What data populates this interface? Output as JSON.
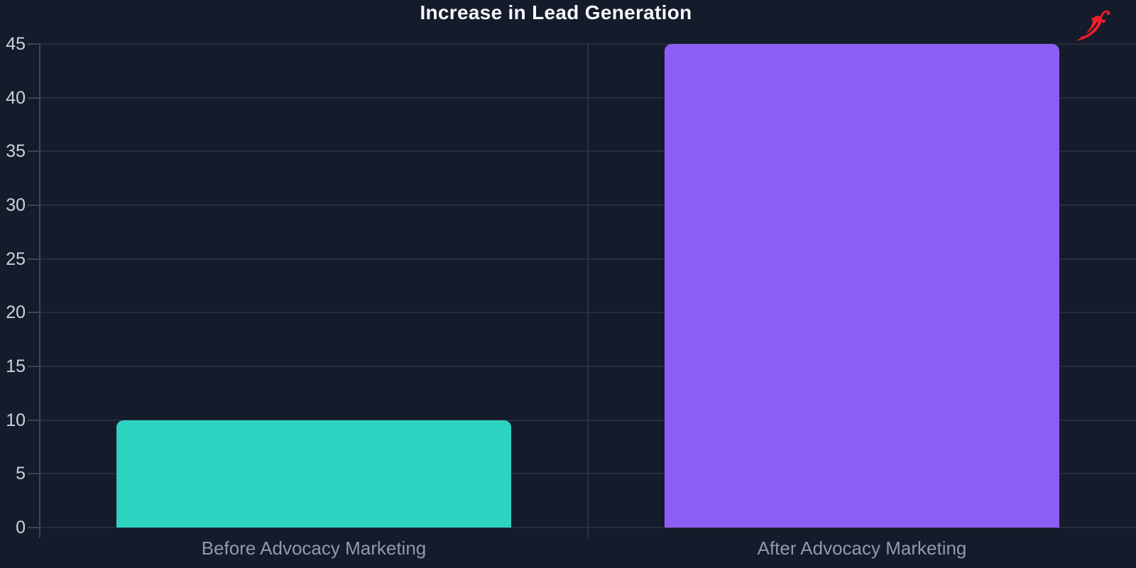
{
  "chart_data": {
    "type": "bar",
    "title": "Increase in Lead Generation",
    "categories": [
      "Before Advocacy Marketing",
      "After Advocacy Marketing"
    ],
    "values": [
      10,
      45
    ],
    "bar_colors": [
      "#2dd3c1",
      "#8c5ef6"
    ],
    "xlabel": "",
    "ylabel": "",
    "ylim": [
      0,
      45
    ],
    "yticks": [
      0,
      5,
      10,
      15,
      20,
      25,
      30,
      35,
      40,
      45
    ],
    "grid": "horizontal gridlines on, one vertical category divider, ticks outside axes",
    "legend": "none"
  },
  "branding": {
    "logo_icon": "chili-pepper-icon",
    "logo_color": "#f01e28"
  },
  "theme": {
    "background": "#141b2b",
    "title_color": "#f5f7fa",
    "grid_color": "#262e3e",
    "axis_color": "#3d4556",
    "divider_color": "#2b3343",
    "ytick_label_color": "#ccd2dc",
    "xtick_label_color": "#9199ab"
  }
}
